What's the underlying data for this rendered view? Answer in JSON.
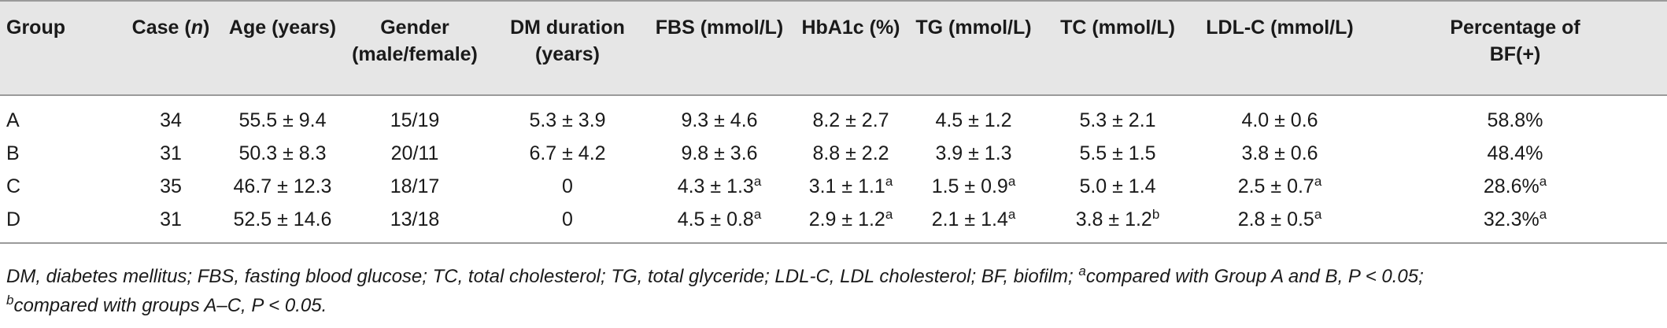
{
  "table": {
    "columns": [
      "Group",
      "Case (n)",
      "Age (years)",
      "Gender (male/female)",
      "DM duration (years)",
      "FBS (mmol/L)",
      "HbA1c (%)",
      "TG (mmol/L)",
      "TC (mmol/L)",
      "LDL-C (mmol/L)",
      "Percentage of BF(+)"
    ],
    "header": {
      "group": "Group",
      "case_prefix": "Case (",
      "case_n": "n",
      "case_suffix": ")",
      "age": "Age (years)",
      "gender_line1": "Gender",
      "gender_line2": "(male/female)",
      "dm_line1": "DM duration",
      "dm_line2": "(years)",
      "fbs": "FBS (mmol/L)",
      "hba1c": "HbA1c (%)",
      "tg": "TG (mmol/L)",
      "tc": "TC (mmol/L)",
      "ldl": "LDL-C (mmol/L)",
      "bf_line1": "Percentage of",
      "bf_line2": "BF(+)"
    },
    "rows": [
      {
        "group": "A",
        "case": "34",
        "age": "55.5 ± 9.4",
        "gender": "15/19",
        "dm": "5.3 ± 3.9",
        "fbs": "9.3 ± 4.6",
        "fbs_sup": "",
        "hba1c": "8.2 ± 2.7",
        "hba1c_sup": "",
        "tg": "4.5 ± 1.2",
        "tg_sup": "",
        "tc": "5.3 ± 2.1",
        "tc_sup": "",
        "ldl": "4.0 ± 0.6",
        "ldl_sup": "",
        "bf": "58.8%",
        "bf_sup": ""
      },
      {
        "group": "B",
        "case": "31",
        "age": "50.3 ± 8.3",
        "gender": "20/11",
        "dm": "6.7 ± 4.2",
        "fbs": "9.8 ± 3.6",
        "fbs_sup": "",
        "hba1c": "8.8 ± 2.2",
        "hba1c_sup": "",
        "tg": "3.9 ± 1.3",
        "tg_sup": "",
        "tc": "5.5 ± 1.5",
        "tc_sup": "",
        "ldl": "3.8 ± 0.6",
        "ldl_sup": "",
        "bf": "48.4%",
        "bf_sup": ""
      },
      {
        "group": "C",
        "case": "35",
        "age": "46.7 ± 12.3",
        "gender": "18/17",
        "dm": "0",
        "fbs": "4.3 ± 1.3",
        "fbs_sup": "a",
        "hba1c": "3.1 ± 1.1",
        "hba1c_sup": "a",
        "tg": "1.5 ± 0.9",
        "tg_sup": "a",
        "tc": "5.0 ± 1.4",
        "tc_sup": "",
        "ldl": "2.5 ± 0.7",
        "ldl_sup": "a",
        "bf": "28.6%",
        "bf_sup": "a"
      },
      {
        "group": "D",
        "case": "31",
        "age": "52.5 ± 14.6",
        "gender": "13/18",
        "dm": "0",
        "fbs": "4.5 ± 0.8",
        "fbs_sup": "a",
        "hba1c": "2.9 ± 1.2",
        "hba1c_sup": "a",
        "tg": "2.1 ± 1.4",
        "tg_sup": "a",
        "tc": "3.8 ± 1.2",
        "tc_sup": "b",
        "ldl": "2.8 ± 0.5",
        "ldl_sup": "a",
        "bf": "32.3%",
        "bf_sup": "a"
      }
    ]
  },
  "footnote": {
    "abbreviations": "DM, diabetes mellitus; FBS, fasting blood glucose; TC, total cholesterol; TG, total glyceride; LDL-C, LDL cholesterol; BF, biofilm; ",
    "note_a_mark": "a",
    "note_a_text": "compared with Group A and B, P < 0.05;",
    "note_b_mark": "b",
    "note_b_text": "compared with groups A–C, P < 0.05."
  }
}
